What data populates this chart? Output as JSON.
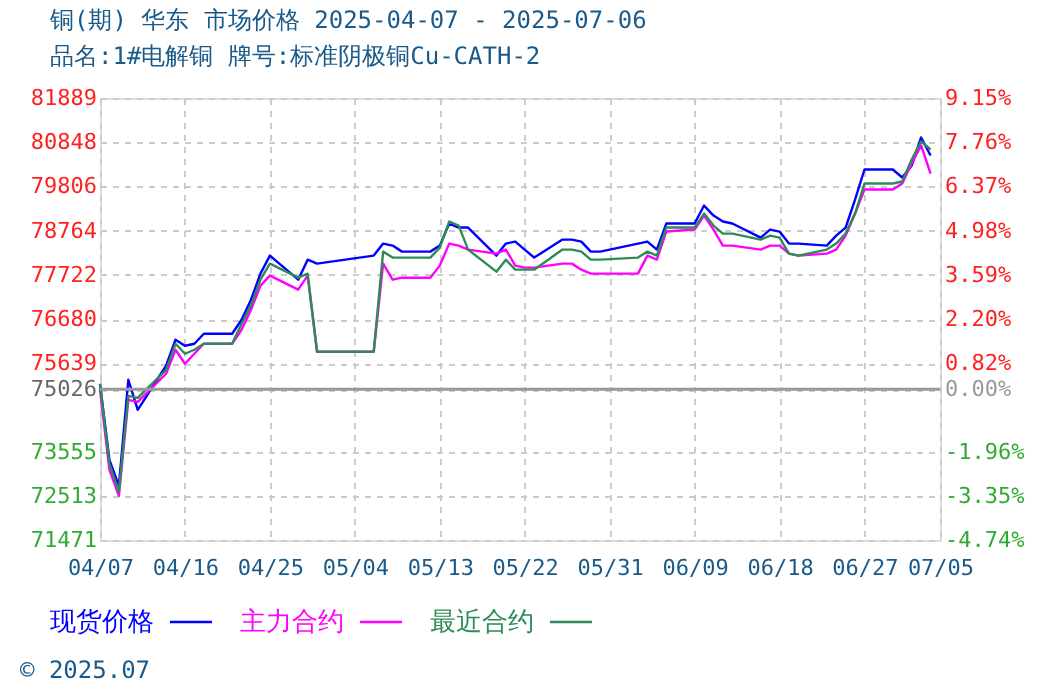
{
  "chart_data": {
    "type": "line",
    "title": "铜(期) 华东 市场价格 2025-04-07 - 2025-07-06",
    "subtitle": "品名:1#电解铜 牌号:标准阴极铜Cu-CATH-2",
    "annotations": [
      "© 2025.07"
    ],
    "x": [
      "2025-04-07",
      "2025-04-08",
      "2025-04-09",
      "2025-04-10",
      "2025-04-11",
      "2025-04-14",
      "2025-04-15",
      "2025-04-16",
      "2025-04-17",
      "2025-04-18",
      "2025-04-21",
      "2025-04-22",
      "2025-04-23",
      "2025-04-24",
      "2025-04-25",
      "2025-04-28",
      "2025-04-29",
      "2025-04-30",
      "2025-05-06",
      "2025-05-07",
      "2025-05-08",
      "2025-05-09",
      "2025-05-12",
      "2025-05-13",
      "2025-05-14",
      "2025-05-15",
      "2025-05-16",
      "2025-05-19",
      "2025-05-20",
      "2025-05-21",
      "2025-05-22",
      "2025-05-23",
      "2025-05-26",
      "2025-05-27",
      "2025-05-28",
      "2025-05-29",
      "2025-05-30",
      "2025-06-03",
      "2025-06-04",
      "2025-06-05",
      "2025-06-06",
      "2025-06-09",
      "2025-06-10",
      "2025-06-11",
      "2025-06-12",
      "2025-06-13",
      "2025-06-16",
      "2025-06-17",
      "2025-06-18",
      "2025-06-19",
      "2025-06-20",
      "2025-06-23",
      "2025-06-24",
      "2025-06-25",
      "2025-06-26",
      "2025-06-27",
      "2025-06-30",
      "2025-07-01",
      "2025-07-02",
      "2025-07-03",
      "2025-07-04"
    ],
    "series": [
      {
        "name": "现货价格",
        "color": "#0000ff",
        "values": [
          75153,
          73359,
          72746,
          75248,
          74539,
          75578,
          76191,
          76050,
          76097,
          76333,
          76333,
          76663,
          77135,
          77749,
          78174,
          77607,
          78079,
          77985,
          78174,
          78457,
          78410,
          78268,
          78268,
          78410,
          78930,
          78835,
          78835,
          78174,
          78457,
          78505,
          78316,
          78127,
          78552,
          78552,
          78505,
          78268,
          78268,
          78457,
          78505,
          78316,
          78930,
          78930,
          79354,
          79118,
          78977,
          78930,
          78599,
          78788,
          78741,
          78457,
          78457,
          78410,
          78646,
          78835,
          79496,
          80204,
          80204,
          80015,
          80298,
          80959,
          80534
        ]
      },
      {
        "name": "主力合约",
        "color": "#ff00ff",
        "values": [
          75011,
          73123,
          72510,
          74775,
          74728,
          75389,
          75955,
          75625,
          75861,
          76097,
          76097,
          76427,
          76899,
          77465,
          77702,
          77371,
          77702,
          75908,
          75908,
          77985,
          77607,
          77654,
          77654,
          77938,
          78457,
          78410,
          78316,
          78221,
          78316,
          77938,
          77891,
          77891,
          77985,
          77985,
          77843,
          77749,
          77749,
          77749,
          78174,
          78079,
          78741,
          78788,
          79118,
          78788,
          78410,
          78410,
          78316,
          78410,
          78410,
          78221,
          78174,
          78221,
          78316,
          78646,
          79165,
          79732,
          79732,
          79874,
          80346,
          80770,
          80109
        ]
      },
      {
        "name": "最近合约",
        "color": "#2e8b57",
        "values": [
          75153,
          73265,
          72604,
          74869,
          74822,
          75483,
          76097,
          75861,
          75955,
          76097,
          76097,
          76569,
          76994,
          77607,
          77985,
          77654,
          77749,
          75908,
          75908,
          78268,
          78127,
          78127,
          78127,
          78363,
          78977,
          78882,
          78316,
          77796,
          78079,
          77843,
          77843,
          77843,
          78316,
          78316,
          78268,
          78079,
          78079,
          78127,
          78268,
          78174,
          78835,
          78835,
          79165,
          78882,
          78693,
          78693,
          78552,
          78646,
          78599,
          78221,
          78174,
          78316,
          78457,
          78693,
          79165,
          79874,
          79874,
          79921,
          80440,
          80865,
          80676
        ]
      }
    ],
    "xlim": [
      "2025-04-07",
      "2025-07-05"
    ],
    "xticks": [
      {
        "value": "2025-04-07",
        "label": "04/07"
      },
      {
        "value": "2025-04-16",
        "label": "04/16"
      },
      {
        "value": "2025-04-25",
        "label": "04/25"
      },
      {
        "value": "2025-05-04",
        "label": "05/04"
      },
      {
        "value": "2025-05-13",
        "label": "05/13"
      },
      {
        "value": "2025-05-22",
        "label": "05/22"
      },
      {
        "value": "2025-05-31",
        "label": "05/31"
      },
      {
        "value": "2025-06-09",
        "label": "06/09"
      },
      {
        "value": "2025-06-18",
        "label": "06/18"
      },
      {
        "value": "2025-06-27",
        "label": "06/27"
      },
      {
        "value": "2025-07-05",
        "label": "07/05"
      }
    ],
    "ylim": [
      71471,
      81889
    ],
    "yticks": [
      71471,
      72513,
      73555,
      75026,
      75639,
      76680,
      77722,
      78764,
      79806,
      80848,
      81889
    ],
    "y2lim": [
      -4.74,
      9.15
    ],
    "y2ticks": [
      {
        "value": -4.74,
        "label": "-4.74%"
      },
      {
        "value": -3.35,
        "label": "-3.35%"
      },
      {
        "value": -1.96,
        "label": "-1.96%"
      },
      {
        "value": 0,
        "label": "0.00%"
      },
      {
        "value": 0.82,
        "label": "0.82%"
      },
      {
        "value": 2.2,
        "label": "2.20%"
      },
      {
        "value": 3.59,
        "label": "3.59%"
      },
      {
        "value": 4.98,
        "label": "4.98%"
      },
      {
        "value": 6.37,
        "label": "6.37%"
      },
      {
        "value": 7.76,
        "label": "7.76%"
      },
      {
        "value": 9.15,
        "label": "9.15%"
      }
    ],
    "ref_lines": [
      {
        "axis": "y",
        "value": 75026,
        "color": "#999999"
      }
    ],
    "grid": true,
    "legend": "bottom",
    "line_style": "solid",
    "marker": "none"
  }
}
